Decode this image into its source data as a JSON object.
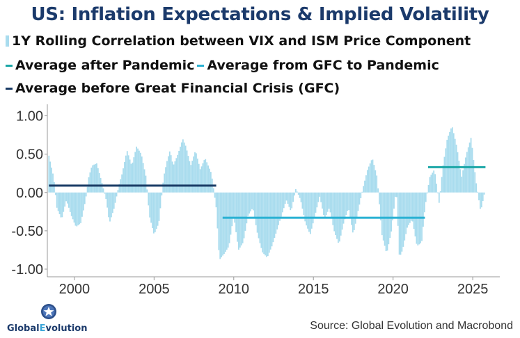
{
  "title": "US: Inflation Expectations & Implied Volatility",
  "legend": {
    "corr": "1Y Rolling Correlation between VIX and ISM Price Component",
    "after": "Average after Pandemic",
    "gfc_to_pandemic": "Average from GFC to Pandemic",
    "before": "Average before Great Financial Crisis (GFC)"
  },
  "colors": {
    "bars": "#a9dcee",
    "after": "#1aa6a6",
    "gfc_to_pandemic": "#29b1d3",
    "before": "#183a64",
    "title": "#1b3a6b"
  },
  "logo": {
    "text_a": "Global",
    "text_b": "E",
    "text_c": "volution"
  },
  "source": "Source: Global Evolution and Macrobond",
  "chart_data": {
    "type": "bar",
    "title": "US: Inflation Expectations & Implied Volatility",
    "xlabel": "",
    "ylabel": "",
    "xlim": [
      1998.3,
      2026.7
    ],
    "ylim": [
      -1.1,
      1.15
    ],
    "y_ticks": [
      1.0,
      0.5,
      0.0,
      -0.5,
      -1.0
    ],
    "y_tick_labels": [
      "1.00",
      "0.50",
      "0.00",
      "-0.50",
      "-1.00"
    ],
    "x_ticks": [
      2000,
      2005,
      2010,
      2015,
      2020,
      2025
    ],
    "x_tick_labels": [
      "2000",
      "2005",
      "2010",
      "2015",
      "2020",
      "2025"
    ],
    "series": [
      {
        "name": "1Y Rolling Correlation between VIX and ISM Price Component",
        "kind": "bars",
        "step": 0.0833,
        "anchors": [
          [
            1998.4,
            0.48
          ],
          [
            1998.7,
            0.2
          ],
          [
            1998.9,
            -0.2
          ],
          [
            1999.2,
            -0.35
          ],
          [
            1999.5,
            -0.1
          ],
          [
            1999.8,
            -0.3
          ],
          [
            2000.1,
            -0.45
          ],
          [
            2000.4,
            -0.4
          ],
          [
            2000.7,
            -0.1
          ],
          [
            2000.9,
            0.2
          ],
          [
            2001.1,
            0.35
          ],
          [
            2001.4,
            0.38
          ],
          [
            2001.7,
            0.15
          ],
          [
            2002.0,
            -0.1
          ],
          [
            2002.2,
            -0.4
          ],
          [
            2002.5,
            -0.2
          ],
          [
            2002.8,
            0.1
          ],
          [
            2003.0,
            0.25
          ],
          [
            2003.3,
            0.55
          ],
          [
            2003.6,
            0.35
          ],
          [
            2003.9,
            0.6
          ],
          [
            2004.2,
            0.5
          ],
          [
            2004.5,
            0.2
          ],
          [
            2004.7,
            -0.3
          ],
          [
            2005.0,
            -0.55
          ],
          [
            2005.3,
            -0.4
          ],
          [
            2005.6,
            0.2
          ],
          [
            2005.8,
            0.4
          ],
          [
            2006.0,
            0.55
          ],
          [
            2006.2,
            0.35
          ],
          [
            2006.5,
            0.5
          ],
          [
            2006.8,
            0.7
          ],
          [
            2007.0,
            0.6
          ],
          [
            2007.3,
            0.35
          ],
          [
            2007.6,
            0.55
          ],
          [
            2007.9,
            0.3
          ],
          [
            2008.2,
            0.45
          ],
          [
            2008.6,
            0.25
          ],
          [
            2008.9,
            -0.2
          ],
          [
            2009.1,
            -0.88
          ],
          [
            2009.4,
            -0.8
          ],
          [
            2009.7,
            -0.7
          ],
          [
            2010.0,
            -0.3
          ],
          [
            2010.3,
            -0.75
          ],
          [
            2010.6,
            -0.65
          ],
          [
            2010.9,
            -0.3
          ],
          [
            2011.2,
            -0.2
          ],
          [
            2011.5,
            -0.55
          ],
          [
            2011.8,
            -0.78
          ],
          [
            2012.1,
            -0.85
          ],
          [
            2012.4,
            -0.7
          ],
          [
            2012.7,
            -0.5
          ],
          [
            2013.0,
            -0.3
          ],
          [
            2013.3,
            -0.1
          ],
          [
            2013.6,
            -0.25
          ],
          [
            2013.9,
            0.05
          ],
          [
            2014.2,
            -0.1
          ],
          [
            2014.5,
            -0.4
          ],
          [
            2014.8,
            -0.55
          ],
          [
            2015.1,
            -0.3
          ],
          [
            2015.4,
            -0.05
          ],
          [
            2015.7,
            -0.35
          ],
          [
            2016.0,
            -0.2
          ],
          [
            2016.3,
            -0.5
          ],
          [
            2016.6,
            -0.68
          ],
          [
            2016.9,
            -0.4
          ],
          [
            2017.2,
            -0.2
          ],
          [
            2017.5,
            -0.55
          ],
          [
            2017.8,
            -0.25
          ],
          [
            2018.1,
            0.05
          ],
          [
            2018.4,
            0.3
          ],
          [
            2018.7,
            0.45
          ],
          [
            2019.0,
            0.2
          ],
          [
            2019.3,
            -0.55
          ],
          [
            2019.6,
            -0.8
          ],
          [
            2019.9,
            -0.5
          ],
          [
            2020.2,
            0.05
          ],
          [
            2020.4,
            -0.85
          ],
          [
            2020.6,
            -0.75
          ],
          [
            2020.9,
            -0.45
          ],
          [
            2021.2,
            -0.35
          ],
          [
            2021.5,
            -0.7
          ],
          [
            2021.8,
            -0.65
          ],
          [
            2022.0,
            -0.2
          ],
          [
            2022.3,
            0.2
          ],
          [
            2022.6,
            0.3
          ],
          [
            2022.9,
            -0.15
          ],
          [
            2023.1,
            0.3
          ],
          [
            2023.4,
            0.7
          ],
          [
            2023.7,
            0.87
          ],
          [
            2024.0,
            0.6
          ],
          [
            2024.3,
            0.2
          ],
          [
            2024.6,
            0.5
          ],
          [
            2024.9,
            0.72
          ],
          [
            2025.2,
            0.15
          ],
          [
            2025.5,
            -0.25
          ],
          [
            2025.8,
            0.05
          ]
        ]
      },
      {
        "name": "Average before Great Financial Crisis (GFC)",
        "kind": "segment",
        "x": [
          1998.4,
          2008.9
        ],
        "y": 0.09
      },
      {
        "name": "Average from GFC to Pandemic",
        "kind": "segment",
        "x": [
          2009.3,
          2022.0
        ],
        "y": -0.33
      },
      {
        "name": "Average after Pandemic",
        "kind": "segment",
        "x": [
          2022.2,
          2025.8
        ],
        "y": 0.33
      }
    ]
  }
}
